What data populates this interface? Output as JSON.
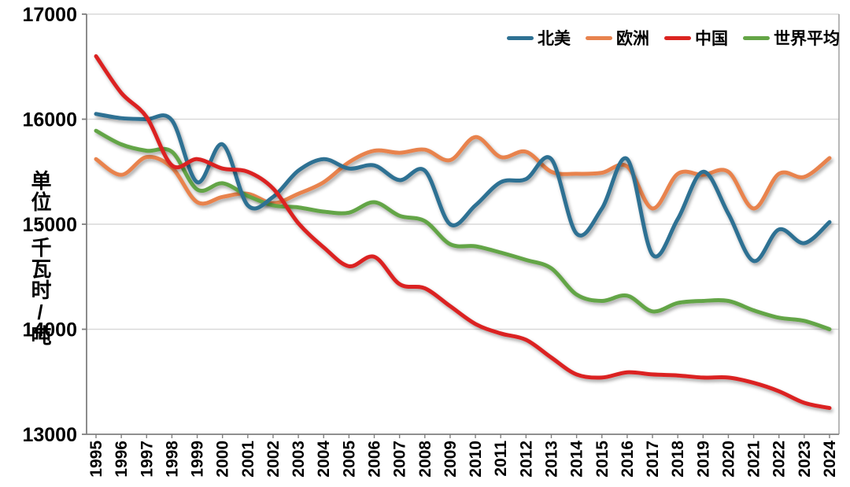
{
  "chart_data": {
    "type": "line",
    "title": "",
    "xlabel": "",
    "ylabel": "单位:千瓦时/吨",
    "ylim": [
      13000,
      17000
    ],
    "yticks": [
      13000,
      14000,
      15000,
      16000,
      17000
    ],
    "grid": "horizontal",
    "legend_position": "top-right",
    "line_style": "smooth",
    "x": [
      1995,
      1996,
      1997,
      1998,
      1999,
      2000,
      2001,
      2002,
      2003,
      2004,
      2005,
      2006,
      2007,
      2008,
      2009,
      2010,
      2011,
      2012,
      2013,
      2014,
      2015,
      2016,
      2017,
      2018,
      2019,
      2020,
      2021,
      2022,
      2023,
      2024
    ],
    "series": [
      {
        "name": "北美",
        "color": "#2E7193",
        "values": [
          16050,
          16010,
          16000,
          15990,
          15400,
          15760,
          15180,
          15260,
          15510,
          15620,
          15530,
          15560,
          15420,
          15510,
          15000,
          15180,
          15400,
          15430,
          15620,
          14910,
          15150,
          15620,
          14710,
          15050,
          15500,
          15100,
          14650,
          14950,
          14820,
          15020
        ]
      },
      {
        "name": "欧洲",
        "color": "#E8834E",
        "values": [
          15620,
          15470,
          15640,
          15540,
          15210,
          15260,
          15290,
          15200,
          15290,
          15400,
          15590,
          15700,
          15680,
          15710,
          15610,
          15830,
          15640,
          15690,
          15500,
          15480,
          15490,
          15550,
          15150,
          15480,
          15470,
          15500,
          15150,
          15480,
          15450,
          15630
        ]
      },
      {
        "name": "中国",
        "color": "#DB2420",
        "values": [
          16600,
          16250,
          16020,
          15560,
          15620,
          15530,
          15500,
          15340,
          15010,
          14780,
          14600,
          14690,
          14430,
          14390,
          14220,
          14050,
          13960,
          13900,
          13730,
          13570,
          13540,
          13590,
          13570,
          13560,
          13540,
          13540,
          13490,
          13410,
          13300,
          13250
        ]
      },
      {
        "name": "世界平均",
        "color": "#64A546",
        "values": [
          15890,
          15760,
          15700,
          15690,
          15330,
          15390,
          15270,
          15180,
          15160,
          15120,
          15110,
          15210,
          15080,
          15030,
          14810,
          14790,
          14730,
          14660,
          14580,
          14330,
          14270,
          14320,
          14170,
          14250,
          14270,
          14270,
          14180,
          14110,
          14080,
          14000
        ]
      }
    ]
  }
}
